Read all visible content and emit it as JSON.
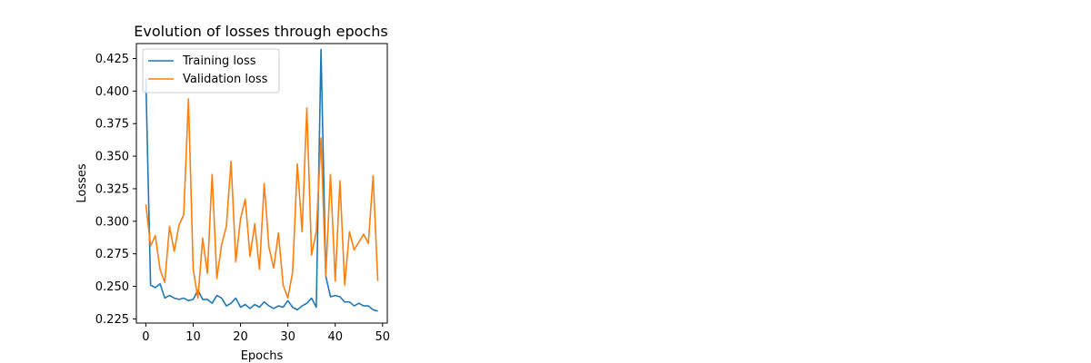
{
  "chart_data": {
    "type": "line",
    "title": "Evolution of losses through epochs",
    "xlabel": "Epochs",
    "ylabel": "Losses",
    "xlim": [
      -2,
      51
    ],
    "ylim": [
      0.2218,
      0.4365
    ],
    "xticks": [
      0,
      10,
      20,
      30,
      40,
      50
    ],
    "yticks": [
      0.225,
      0.25,
      0.275,
      0.3,
      0.325,
      0.35,
      0.375,
      0.4,
      0.425
    ],
    "ytick_labels": [
      "0.225",
      "0.250",
      "0.275",
      "0.300",
      "0.325",
      "0.350",
      "0.375",
      "0.400",
      "0.425"
    ],
    "grid": false,
    "legend_position": "upper-left",
    "x": [
      0,
      1,
      2,
      3,
      4,
      5,
      6,
      7,
      8,
      9,
      10,
      11,
      12,
      13,
      14,
      15,
      16,
      17,
      18,
      19,
      20,
      21,
      22,
      23,
      24,
      25,
      26,
      27,
      28,
      29,
      30,
      31,
      32,
      33,
      34,
      35,
      36,
      37,
      38,
      39,
      40,
      41,
      42,
      43,
      44,
      45,
      46,
      47,
      48,
      49
    ],
    "series": [
      {
        "name": "Training loss",
        "color": "#1f77b4",
        "values": [
          0.41,
          0.251,
          0.249,
          0.252,
          0.241,
          0.243,
          0.241,
          0.24,
          0.241,
          0.239,
          0.24,
          0.247,
          0.24,
          0.24,
          0.237,
          0.243,
          0.241,
          0.235,
          0.237,
          0.241,
          0.234,
          0.236,
          0.233,
          0.236,
          0.234,
          0.238,
          0.235,
          0.233,
          0.235,
          0.234,
          0.239,
          0.234,
          0.232,
          0.235,
          0.237,
          0.241,
          0.234,
          0.432,
          0.258,
          0.242,
          0.243,
          0.242,
          0.238,
          0.238,
          0.235,
          0.237,
          0.235,
          0.235,
          0.232,
          0.231
        ]
      },
      {
        "name": "Validation loss",
        "color": "#ff7f0e",
        "values": [
          0.313,
          0.281,
          0.289,
          0.263,
          0.253,
          0.296,
          0.277,
          0.297,
          0.305,
          0.394,
          0.263,
          0.241,
          0.287,
          0.26,
          0.336,
          0.256,
          0.282,
          0.296,
          0.346,
          0.269,
          0.302,
          0.317,
          0.273,
          0.298,
          0.263,
          0.329,
          0.28,
          0.264,
          0.291,
          0.251,
          0.241,
          0.261,
          0.344,
          0.292,
          0.387,
          0.274,
          0.292,
          0.364,
          0.258,
          0.336,
          0.254,
          0.331,
          0.251,
          0.292,
          0.278,
          0.284,
          0.29,
          0.283,
          0.335,
          0.254
        ]
      }
    ]
  }
}
